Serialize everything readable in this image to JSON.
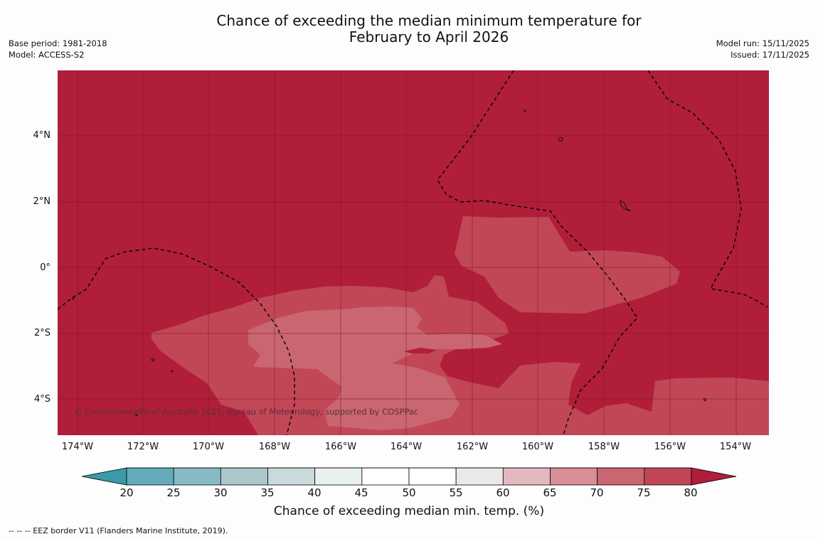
{
  "title_line1": "Chance of exceeding the median minimum temperature for",
  "title_line2": "February to April 2026",
  "meta": {
    "base_period": "Base period: 1981-2018",
    "model": "Model: ACCESS-S2",
    "model_run": "Model run: 15/11/2025",
    "issued": "Issued: 17/11/2025"
  },
  "map": {
    "latitude_labels": [
      "4°N",
      "2°N",
      "0°",
      "2°S",
      "4°S"
    ],
    "longitude_labels": [
      "174°W",
      "172°W",
      "170°W",
      "168°W",
      "166°W",
      "164°W",
      "162°W",
      "160°W",
      "158°W",
      "156°W",
      "154°W"
    ],
    "copyright": "© Commonwealth of Australia 2025, Bureau of Meteorology, supported by COSPPac",
    "dominant_category": ">80",
    "colors": {
      "gt80": "#b01e3a",
      "c75_80": "#c14757",
      "c70_75": "#c96672",
      "grid": "#7a1525",
      "eez": "#000000"
    }
  },
  "colorbar": {
    "ticks": [
      "20",
      "25",
      "30",
      "35",
      "40",
      "45",
      "50",
      "55",
      "60",
      "65",
      "70",
      "75",
      "80"
    ],
    "colors": [
      "#3b9aaa",
      "#65abbb",
      "#88bac5",
      "#abc7cc",
      "#cad9dc",
      "#e8f0f0",
      "#ffffff",
      "#ffffff",
      "#ebe8e8",
      "#e3b8be",
      "#d98d97",
      "#c96672",
      "#c14757",
      "#b01e3a"
    ],
    "label": "Chance of exceeding median min. temp. (%)"
  },
  "footnote": "--  --  -- EEZ border V11 (Flanders Marine Institute, 2019)."
}
